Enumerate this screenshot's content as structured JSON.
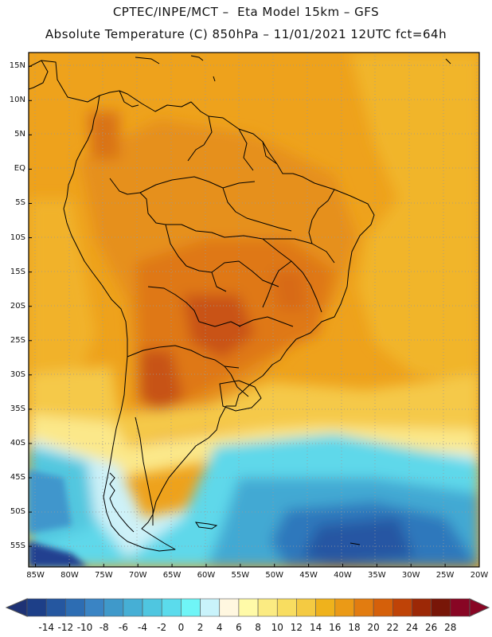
{
  "title": {
    "line1": "CPTEC/INPE/MCT –  Eta Model 15km – GFS",
    "line2": "Absolute Temperature (C) 850hPa – 11/01/2021 12UTC fct=64h"
  },
  "map": {
    "region": "South America",
    "lat_range": [
      -58,
      17
    ],
    "lon_range": [
      -86,
      -20
    ],
    "lat_ticks": [
      "15N",
      "10N",
      "5N",
      "EQ",
      "5S",
      "10S",
      "15S",
      "20S",
      "25S",
      "30S",
      "35S",
      "40S",
      "45S",
      "50S",
      "55S"
    ],
    "lon_ticks": [
      "85W",
      "80W",
      "75W",
      "70W",
      "65W",
      "60W",
      "55W",
      "50W",
      "45W",
      "40W",
      "35W",
      "30W",
      "25W",
      "20W"
    ]
  },
  "colorbar": {
    "labels": [
      "-14",
      "-12",
      "-10",
      "-8",
      "-6",
      "-4",
      "-2",
      "0",
      "2",
      "4",
      "6",
      "8",
      "10",
      "12",
      "14",
      "16",
      "18",
      "20",
      "22",
      "24",
      "26",
      "28"
    ],
    "colors": [
      "#1d3f88",
      "#2557a0",
      "#2d6db3",
      "#3a84c4",
      "#3f99ca",
      "#46afd5",
      "#4fc6e0",
      "#5bdbec",
      "#6ff5f7",
      "#c9f3fb",
      "#fff7e0",
      "#fffaa8",
      "#fbeb82",
      "#f8dd60",
      "#f4ca42",
      "#efb21c",
      "#eb9a16",
      "#e27c10",
      "#d5600a",
      "#bf4307",
      "#9c2806",
      "#781608",
      "#880624"
    ],
    "legend_keys": [
      "ocean_cold",
      "shelf_cool",
      "land_warm",
      "land_hot"
    ],
    "underflow_color": "#1e3275",
    "overflow_color": "#880624"
  }
}
